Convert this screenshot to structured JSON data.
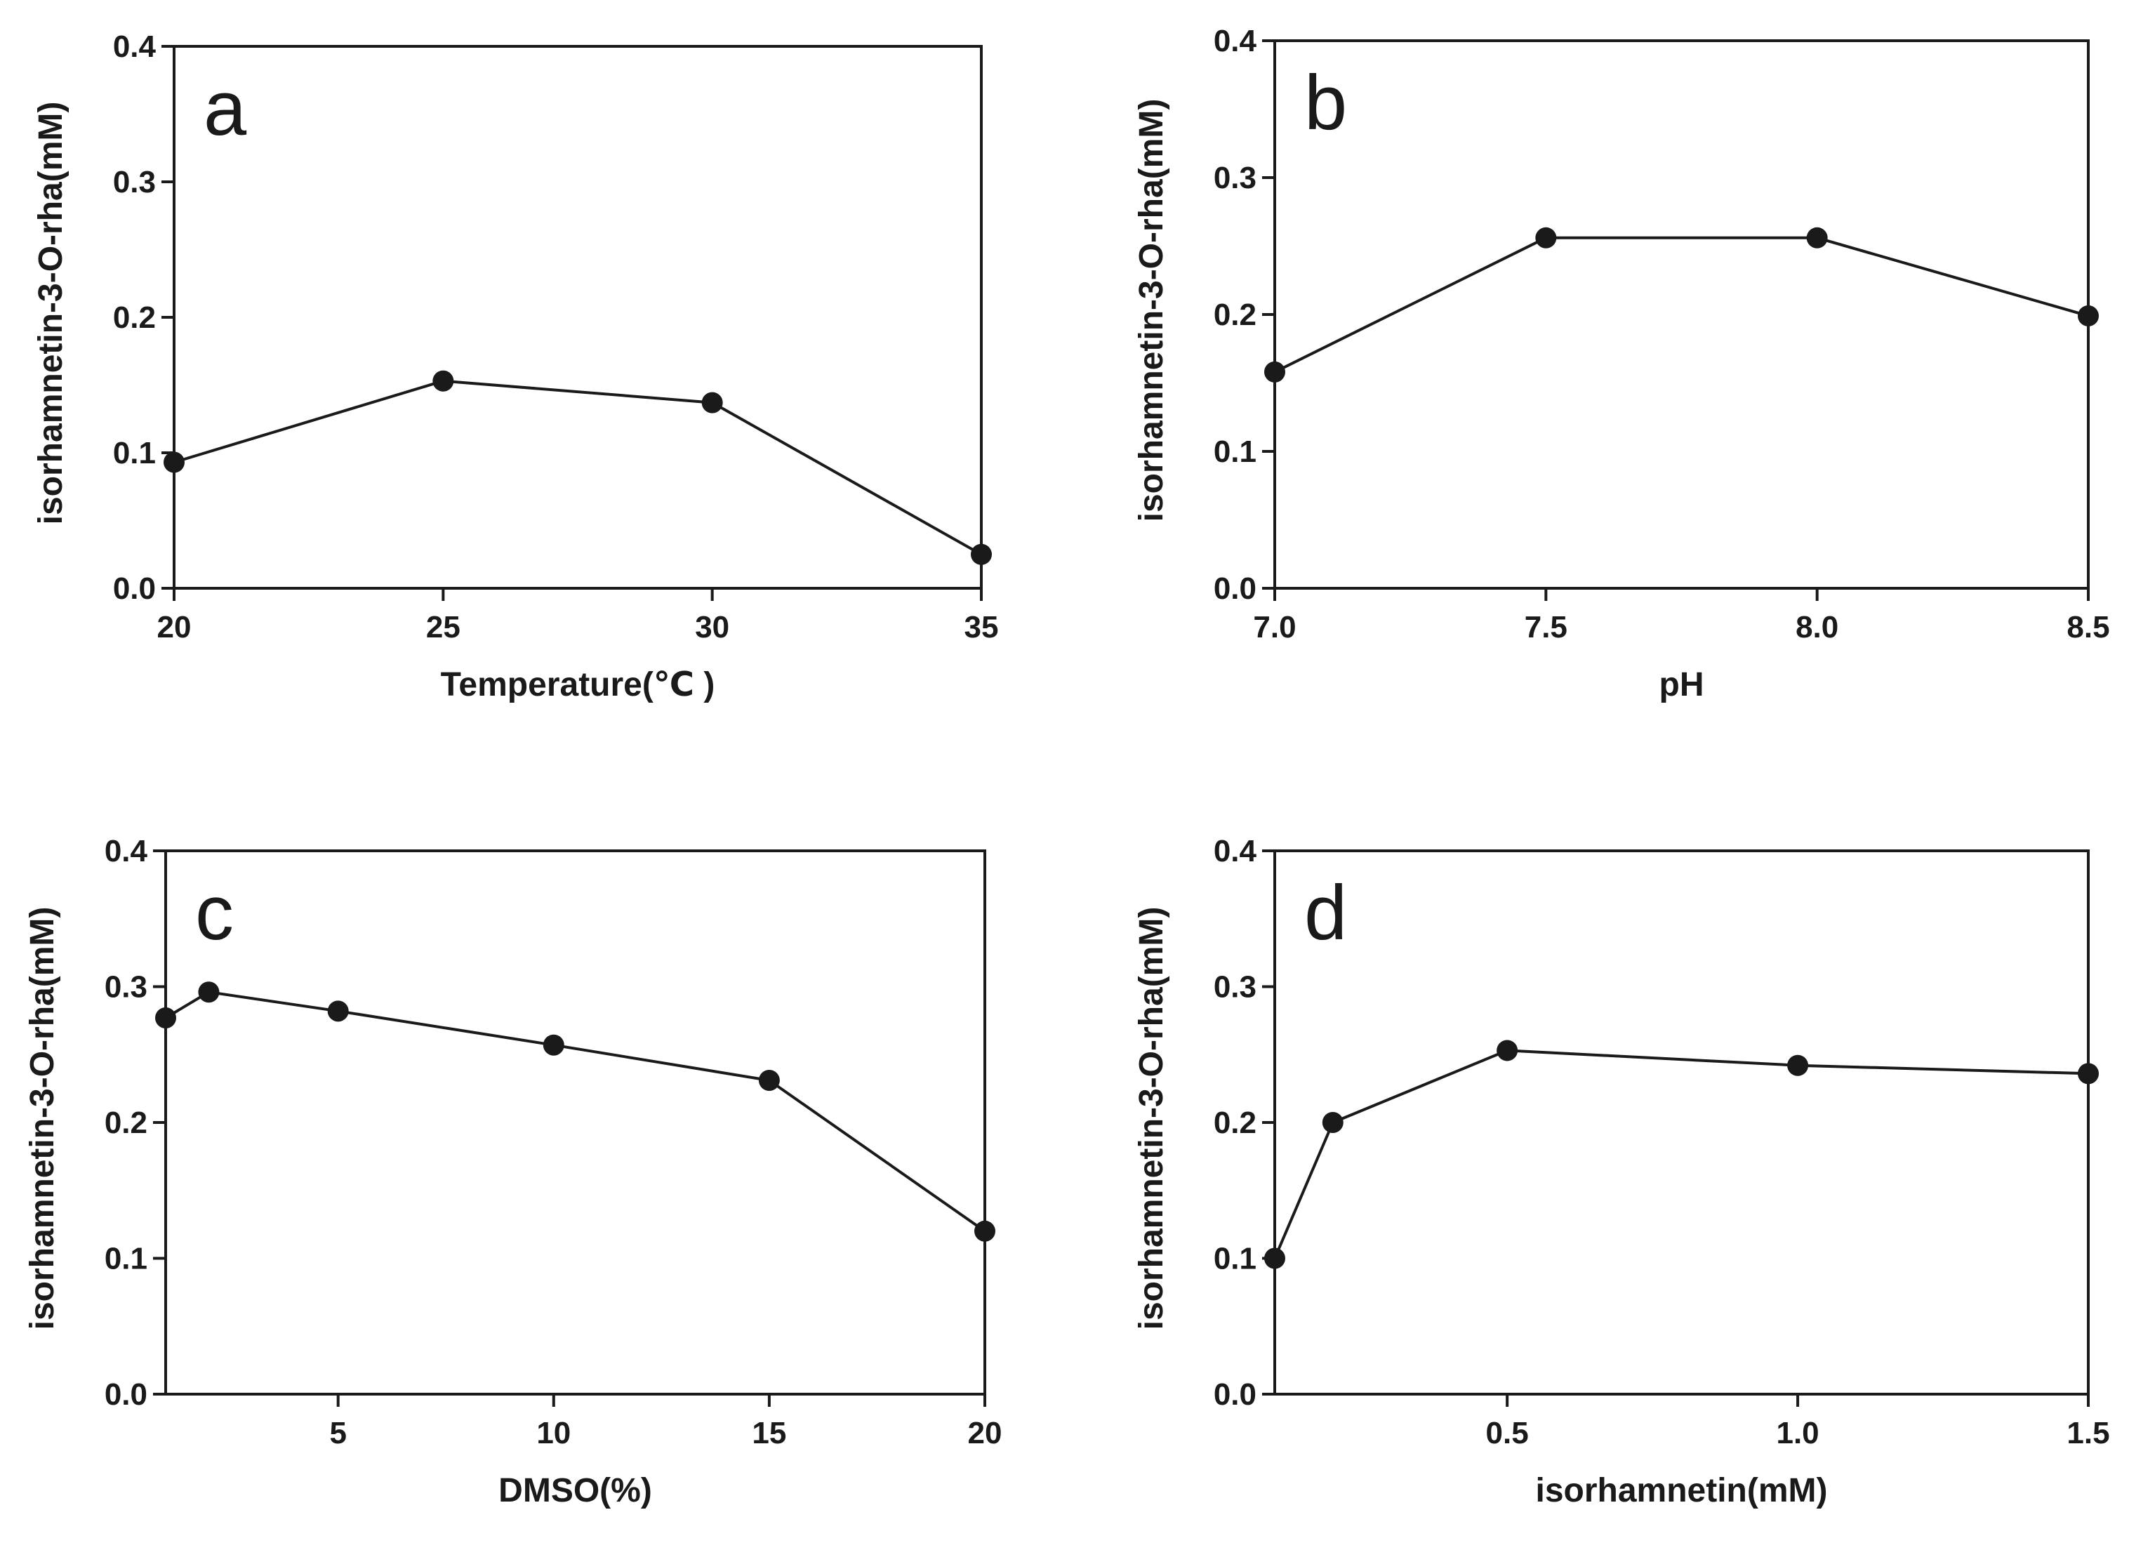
{
  "style": {
    "ink_color": "#1a1a1a",
    "background": "#ffffff"
  },
  "chart_data": [
    {
      "type": "line",
      "panel_label": "a",
      "xlabel": "Temperature(℃ )",
      "ylabel": "isorhamnetin-3-O-rha(mM)",
      "xlim": [
        20,
        35
      ],
      "ylim": [
        0,
        0.4
      ],
      "xticks": [
        20,
        25,
        30,
        35
      ],
      "xtick_labels": [
        "20",
        "25",
        "30",
        "35"
      ],
      "yticks": [
        0,
        0.1,
        0.2,
        0.3,
        0.4
      ],
      "ytick_labels": [
        "0.0",
        "0.1",
        "0.2",
        "0.3",
        "0.4"
      ],
      "grid": false,
      "x": [
        20,
        25,
        30,
        35
      ],
      "y": [
        0.093,
        0.153,
        0.137,
        0.025
      ]
    },
    {
      "type": "line",
      "panel_label": "b",
      "xlabel": "pH",
      "ylabel": "isorhamnetin-3-O-rha(mM)",
      "xlim": [
        7.0,
        8.5
      ],
      "ylim": [
        0,
        0.4
      ],
      "xticks": [
        7.0,
        7.5,
        8.0,
        8.5
      ],
      "xtick_labels": [
        "7.0",
        "7.5",
        "8.0",
        "8.5"
      ],
      "yticks": [
        0,
        0.1,
        0.2,
        0.3,
        0.4
      ],
      "ytick_labels": [
        "0.0",
        "0.1",
        "0.2",
        "0.3",
        "0.4"
      ],
      "grid": false,
      "x": [
        7.0,
        7.5,
        8.0,
        8.5
      ],
      "y": [
        0.158,
        0.256,
        0.256,
        0.199
      ]
    },
    {
      "type": "line",
      "panel_label": "c",
      "xlabel": "DMSO(%)",
      "ylabel": "isorhamnetin-3-O-rha(mM)",
      "xlim": [
        1,
        20
      ],
      "ylim": [
        0,
        0.4
      ],
      "xticks": [
        5,
        10,
        15,
        20
      ],
      "xtick_labels": [
        "5",
        "10",
        "15",
        "20"
      ],
      "yticks": [
        0,
        0.1,
        0.2,
        0.3,
        0.4
      ],
      "ytick_labels": [
        "0.0",
        "0.1",
        "0.2",
        "0.3",
        "0.4"
      ],
      "grid": false,
      "x": [
        1,
        2,
        5,
        10,
        15,
        20
      ],
      "y": [
        0.277,
        0.296,
        0.282,
        0.257,
        0.231,
        0.12
      ]
    },
    {
      "type": "line",
      "panel_label": "d",
      "xlabel": "isorhamnetin(mM)",
      "ylabel": "isorhamnetin-3-O-rha(mM)",
      "xlim": [
        0.1,
        1.5
      ],
      "ylim": [
        0,
        0.4
      ],
      "xticks": [
        0.5,
        1.0,
        1.5
      ],
      "xtick_labels": [
        "0.5",
        "1.0",
        "1.5"
      ],
      "yticks": [
        0,
        0.1,
        0.2,
        0.3,
        0.4
      ],
      "ytick_labels": [
        "0.0",
        "0.1",
        "0.2",
        "0.3",
        "0.4"
      ],
      "grid": false,
      "x": [
        0.1,
        0.2,
        0.5,
        1.0,
        1.5
      ],
      "y": [
        0.1,
        0.2,
        0.253,
        0.242,
        0.236
      ]
    }
  ]
}
